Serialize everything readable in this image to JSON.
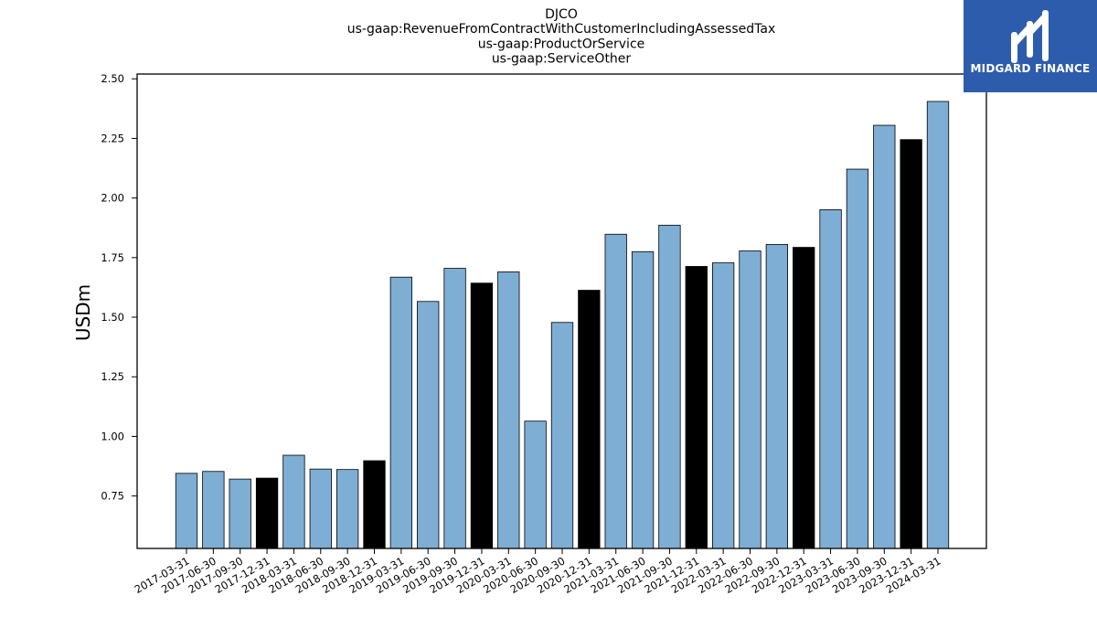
{
  "chart_data": {
    "type": "bar",
    "title_lines": [
      "DJCO",
      "us-gaap:RevenueFromContractWithCustomerIncludingAssessedTax",
      "us-gaap:ProductOrService",
      "us-gaap:ServiceOther"
    ],
    "xlabel": "",
    "ylabel": "USDm",
    "ylim": [
      0.53,
      2.52
    ],
    "yticks": [
      "0.75",
      "1.00",
      "1.25",
      "1.50",
      "1.75",
      "2.00",
      "2.25",
      "2.50"
    ],
    "categories": [
      "2017-03-31",
      "2017-06-30",
      "2017-09-30",
      "2017-12-31",
      "2018-03-31",
      "2018-06-30",
      "2018-09-30",
      "2018-12-31",
      "2019-03-31",
      "2019-06-30",
      "2019-09-30",
      "2019-12-31",
      "2020-03-31",
      "2020-06-30",
      "2020-09-30",
      "2020-12-31",
      "2021-03-31",
      "2021-06-30",
      "2021-09-30",
      "2021-12-31",
      "2022-03-31",
      "2022-06-30",
      "2022-09-30",
      "2022-12-31",
      "2023-03-31",
      "2023-06-30",
      "2023-09-30",
      "2023-12-31",
      "2024-03-31"
    ],
    "values": [
      0.845,
      0.853,
      0.821,
      0.825,
      0.921,
      0.863,
      0.861,
      0.898,
      1.668,
      1.566,
      1.705,
      1.643,
      1.69,
      1.064,
      1.478,
      1.613,
      1.848,
      1.775,
      1.886,
      1.713,
      1.728,
      1.778,
      1.805,
      1.793,
      1.951,
      2.121,
      2.305,
      2.245,
      2.405
    ],
    "highlighted": [
      3,
      7,
      11,
      15,
      19,
      23,
      27
    ],
    "colors": {
      "bar": "#7eaed4",
      "highlight": "#000000",
      "edge": "#000000"
    }
  },
  "logo": {
    "text": "MIDGARD FINANCE",
    "icon": "midgard-logo-icon",
    "background": "#2e5cad"
  }
}
